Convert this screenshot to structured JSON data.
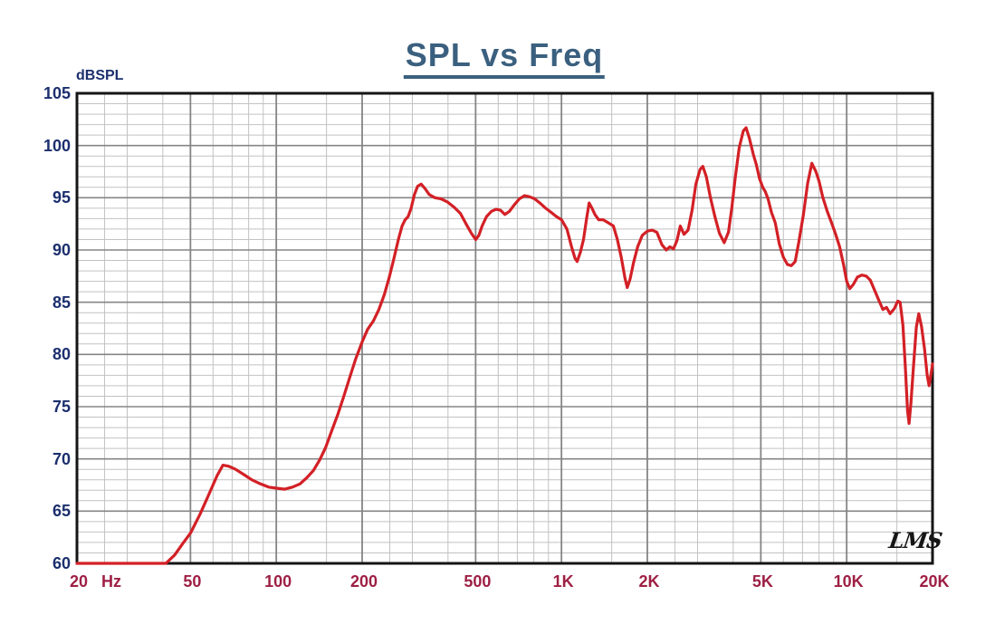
{
  "title": "SPL vs Freq",
  "watermark": "LMS",
  "colors": {
    "title": "#3b607f",
    "y_labels": "#1c2f6e",
    "x_labels": "#9e2044",
    "curve": "#d32026",
    "grid_major": "#858585",
    "grid_minor": "#c2c2c2",
    "frame": "#151515",
    "background": "#ffffff",
    "watermark": "#161616"
  },
  "chart_data": {
    "type": "line",
    "title": "SPL vs Freq",
    "ylabel": "dBSPL",
    "x_unit_label": "Hz",
    "x_scale": "log",
    "xlim": [
      20,
      20000
    ],
    "ylim": [
      60,
      105
    ],
    "grid": true,
    "legend_position": "none",
    "y_major_tick_step": 5,
    "y_minor_tick_step": 1,
    "y_tick_labels": [
      "105",
      "100",
      "95",
      "90",
      "85",
      "80",
      "75",
      "70",
      "65",
      "60"
    ],
    "x_tick_labels": [
      {
        "f": 20,
        "label": "20"
      },
      {
        "f": 50,
        "label": "50"
      },
      {
        "f": 100,
        "label": "100"
      },
      {
        "f": 200,
        "label": "200"
      },
      {
        "f": 500,
        "label": "500"
      },
      {
        "f": 1000,
        "label": "1K"
      },
      {
        "f": 2000,
        "label": "2K"
      },
      {
        "f": 5000,
        "label": "5K"
      },
      {
        "f": 10000,
        "label": "10K"
      },
      {
        "f": 20000,
        "label": "20K"
      }
    ],
    "x_major_gridlines": [
      50,
      100,
      200,
      500,
      1000,
      2000,
      5000,
      10000
    ],
    "x_minor_multipliers": [
      1.5,
      2,
      2.5,
      3,
      4,
      5,
      6,
      7,
      8,
      9
    ],
    "series": [
      {
        "name": "SPL",
        "color": "#d32026",
        "points": [
          [
            20,
            60
          ],
          [
            25,
            60
          ],
          [
            30,
            60
          ],
          [
            36,
            60
          ],
          [
            41,
            60
          ],
          [
            44,
            60.8
          ],
          [
            47,
            61.9
          ],
          [
            50,
            62.9
          ],
          [
            54,
            64.7
          ],
          [
            58,
            66.6
          ],
          [
            62,
            68.4
          ],
          [
            65,
            69.4
          ],
          [
            68,
            69.3
          ],
          [
            72,
            69.0
          ],
          [
            77,
            68.5
          ],
          [
            82,
            68.0
          ],
          [
            88,
            67.6
          ],
          [
            94,
            67.3
          ],
          [
            100,
            67.2
          ],
          [
            107,
            67.1
          ],
          [
            114,
            67.3
          ],
          [
            121,
            67.6
          ],
          [
            128,
            68.2
          ],
          [
            135,
            68.9
          ],
          [
            142,
            69.9
          ],
          [
            149,
            71.1
          ],
          [
            156,
            72.6
          ],
          [
            164,
            74.2
          ],
          [
            172,
            75.9
          ],
          [
            181,
            77.8
          ],
          [
            190,
            79.6
          ],
          [
            200,
            81.2
          ],
          [
            209,
            82.4
          ],
          [
            219,
            83.2
          ],
          [
            229,
            84.3
          ],
          [
            239,
            85.7
          ],
          [
            249,
            87.4
          ],
          [
            259,
            89.3
          ],
          [
            268,
            91.0
          ],
          [
            276,
            92.3
          ],
          [
            283,
            92.9
          ],
          [
            290,
            93.2
          ],
          [
            297,
            94.0
          ],
          [
            305,
            95.3
          ],
          [
            313,
            96.1
          ],
          [
            322,
            96.3
          ],
          [
            332,
            95.9
          ],
          [
            344,
            95.3
          ],
          [
            360,
            95.0
          ],
          [
            378,
            94.9
          ],
          [
            398,
            94.6
          ],
          [
            420,
            94.1
          ],
          [
            442,
            93.5
          ],
          [
            465,
            92.4
          ],
          [
            483,
            91.6
          ],
          [
            500,
            91.0
          ],
          [
            513,
            91.4
          ],
          [
            527,
            92.3
          ],
          [
            546,
            93.2
          ],
          [
            568,
            93.7
          ],
          [
            590,
            93.9
          ],
          [
            612,
            93.8
          ],
          [
            633,
            93.4
          ],
          [
            657,
            93.7
          ],
          [
            682,
            94.3
          ],
          [
            712,
            94.9
          ],
          [
            742,
            95.2
          ],
          [
            772,
            95.1
          ],
          [
            805,
            94.9
          ],
          [
            840,
            94.5
          ],
          [
            880,
            94.0
          ],
          [
            920,
            93.6
          ],
          [
            960,
            93.2
          ],
          [
            1000,
            92.9
          ],
          [
            1045,
            92.0
          ],
          [
            1085,
            90.3
          ],
          [
            1115,
            89.2
          ],
          [
            1135,
            88.9
          ],
          [
            1165,
            89.8
          ],
          [
            1195,
            91.0
          ],
          [
            1225,
            93.0
          ],
          [
            1250,
            94.5
          ],
          [
            1280,
            94.0
          ],
          [
            1310,
            93.4
          ],
          [
            1350,
            92.9
          ],
          [
            1400,
            92.9
          ],
          [
            1460,
            92.6
          ],
          [
            1520,
            92.3
          ],
          [
            1570,
            91.0
          ],
          [
            1620,
            89.3
          ],
          [
            1670,
            87.3
          ],
          [
            1700,
            86.4
          ],
          [
            1740,
            87.2
          ],
          [
            1790,
            88.8
          ],
          [
            1850,
            90.3
          ],
          [
            1920,
            91.4
          ],
          [
            2000,
            91.8
          ],
          [
            2080,
            91.9
          ],
          [
            2160,
            91.7
          ],
          [
            2250,
            90.5
          ],
          [
            2330,
            90.0
          ],
          [
            2400,
            90.3
          ],
          [
            2470,
            90.1
          ],
          [
            2540,
            90.9
          ],
          [
            2610,
            92.3
          ],
          [
            2690,
            91.5
          ],
          [
            2780,
            91.9
          ],
          [
            2870,
            93.8
          ],
          [
            2960,
            96.3
          ],
          [
            3060,
            97.7
          ],
          [
            3130,
            98.0
          ],
          [
            3220,
            97.0
          ],
          [
            3330,
            95.0
          ],
          [
            3450,
            93.2
          ],
          [
            3580,
            91.6
          ],
          [
            3720,
            90.7
          ],
          [
            3850,
            91.7
          ],
          [
            3960,
            94.1
          ],
          [
            4070,
            97.0
          ],
          [
            4200,
            99.8
          ],
          [
            4340,
            101.4
          ],
          [
            4440,
            101.7
          ],
          [
            4560,
            100.7
          ],
          [
            4700,
            99.2
          ],
          [
            4820,
            98.2
          ],
          [
            4950,
            96.8
          ],
          [
            5080,
            96.0
          ],
          [
            5180,
            95.6
          ],
          [
            5300,
            94.9
          ],
          [
            5450,
            93.6
          ],
          [
            5620,
            92.6
          ],
          [
            5800,
            90.6
          ],
          [
            6000,
            89.3
          ],
          [
            6200,
            88.6
          ],
          [
            6400,
            88.5
          ],
          [
            6600,
            88.9
          ],
          [
            6800,
            90.8
          ],
          [
            7050,
            93.4
          ],
          [
            7300,
            96.4
          ],
          [
            7550,
            98.3
          ],
          [
            7800,
            97.5
          ],
          [
            8000,
            96.6
          ],
          [
            8250,
            95.0
          ],
          [
            8550,
            93.7
          ],
          [
            8850,
            92.6
          ],
          [
            9150,
            91.5
          ],
          [
            9450,
            90.3
          ],
          [
            9750,
            88.6
          ],
          [
            10000,
            87.0
          ],
          [
            10250,
            86.3
          ],
          [
            10550,
            86.7
          ],
          [
            10900,
            87.4
          ],
          [
            11300,
            87.6
          ],
          [
            11700,
            87.5
          ],
          [
            12100,
            87.1
          ],
          [
            12500,
            86.2
          ],
          [
            13000,
            85.1
          ],
          [
            13400,
            84.3
          ],
          [
            13800,
            84.5
          ],
          [
            14200,
            83.9
          ],
          [
            14700,
            84.4
          ],
          [
            15100,
            85.1
          ],
          [
            15400,
            85.0
          ],
          [
            15750,
            82.8
          ],
          [
            16050,
            78.9
          ],
          [
            16350,
            74.6
          ],
          [
            16550,
            73.4
          ],
          [
            16800,
            75.3
          ],
          [
            17150,
            78.9
          ],
          [
            17550,
            82.6
          ],
          [
            17900,
            83.9
          ],
          [
            18300,
            82.7
          ],
          [
            18750,
            80.5
          ],
          [
            19150,
            78.0
          ],
          [
            19450,
            77.0
          ],
          [
            19750,
            78.1
          ],
          [
            20000,
            79.1
          ]
        ]
      }
    ]
  }
}
